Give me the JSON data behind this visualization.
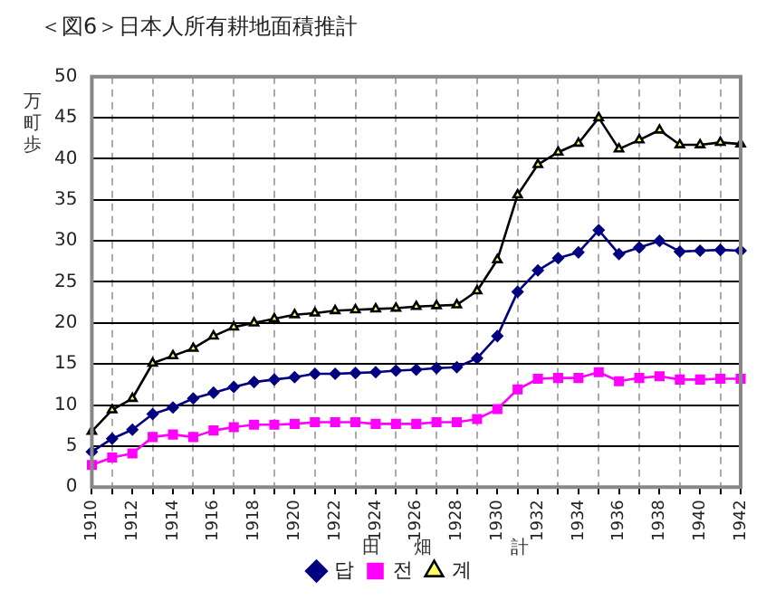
{
  "chart_data": {
    "type": "line",
    "title": "＜図6＞日本人所有耕地面積推計",
    "ylabel": "万町歩",
    "categories": [
      "1910",
      null,
      "1912",
      null,
      "1914",
      null,
      "1916",
      null,
      "1918",
      null,
      "1920",
      null,
      "1922",
      null,
      "1924",
      null,
      "1926",
      null,
      "1928",
      null,
      "1930",
      null,
      "1932",
      null,
      "1934",
      null,
      "1936",
      null,
      "1938",
      null,
      "1940",
      null,
      "1942"
    ],
    "series": [
      {
        "name": "답",
        "color": "#000080",
        "marker": "diamond",
        "values": [
          4.3,
          5.9,
          7.0,
          8.9,
          9.7,
          10.8,
          11.5,
          12.2,
          12.8,
          13.1,
          13.4,
          13.8,
          13.8,
          13.9,
          14.0,
          14.2,
          14.3,
          14.5,
          14.6,
          15.7,
          18.4,
          23.8,
          26.4,
          27.9,
          28.6,
          31.3,
          28.4,
          29.2,
          30.0,
          28.7,
          28.8,
          28.9,
          28.8
        ]
      },
      {
        "name": "전",
        "color": "#ff00ff",
        "marker": "square",
        "values": [
          2.7,
          3.6,
          4.1,
          6.1,
          6.4,
          6.1,
          6.9,
          7.3,
          7.6,
          7.6,
          7.7,
          7.9,
          7.9,
          7.9,
          7.7,
          7.7,
          7.7,
          7.9,
          7.9,
          8.3,
          9.5,
          11.9,
          13.2,
          13.3,
          13.3,
          14.0,
          12.9,
          13.3,
          13.5,
          13.1,
          13.1,
          13.2,
          13.2
        ]
      },
      {
        "name": "계",
        "color": "#000000",
        "marker": "triangle",
        "values": [
          6.8,
          9.4,
          10.8,
          15.1,
          16.0,
          16.9,
          18.4,
          19.5,
          20.0,
          20.5,
          21.0,
          21.2,
          21.5,
          21.6,
          21.7,
          21.8,
          22.0,
          22.1,
          22.2,
          23.9,
          27.7,
          35.6,
          39.3,
          40.8,
          41.9,
          45.0,
          41.2,
          42.3,
          43.5,
          41.7,
          41.7,
          42.0,
          41.8
        ]
      }
    ],
    "ylim": [
      0,
      50
    ],
    "yticks": [
      0,
      5,
      10,
      15,
      20,
      25,
      30,
      35,
      40,
      45,
      50
    ],
    "grid": true,
    "legend": "bottom",
    "annotations": [
      "田",
      "畑",
      "計"
    ]
  }
}
